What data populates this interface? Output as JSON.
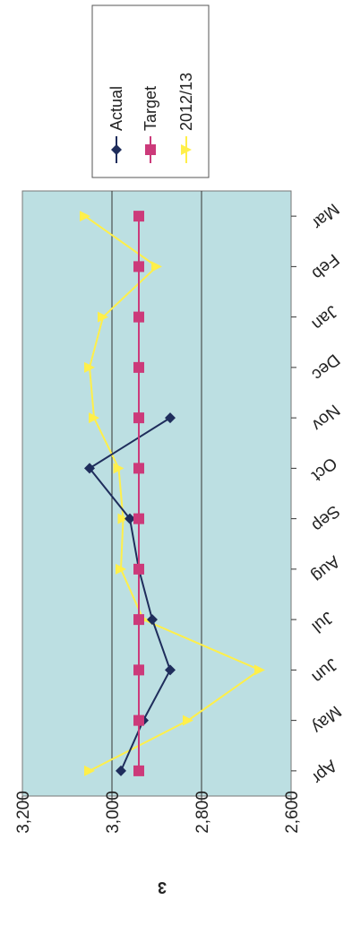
{
  "page_mark": "3",
  "chart_data": {
    "type": "line",
    "orientation": "rotated-90",
    "categories": [
      "Apr",
      "May",
      "Jun",
      "Jul",
      "Aug",
      "Sep",
      "Oct",
      "Nov",
      "Dec",
      "Jan",
      "Feb",
      "Mar"
    ],
    "y_ticks": [
      "3,200",
      "3,000",
      "2,800",
      "2,600"
    ],
    "ylim": [
      2600,
      3200
    ],
    "grid": true,
    "legend_position": "top-right",
    "series": [
      {
        "name": "Actual",
        "color": "#1f2d5c",
        "marker": "diamond",
        "values": [
          2980,
          2930,
          2870,
          2910,
          2940,
          2960,
          3050,
          2870,
          null,
          null,
          null,
          null
        ]
      },
      {
        "name": "Target",
        "color": "#cc3a7a",
        "marker": "square",
        "values": [
          2940,
          2940,
          2940,
          2940,
          2940,
          2940,
          2940,
          2940,
          2940,
          2940,
          2940,
          2940
        ]
      },
      {
        "name": "2012/13",
        "color": "#ffef4a",
        "marker": "triangle",
        "values": [
          3050,
          2830,
          2670,
          2930,
          2980,
          2975,
          2985,
          3040,
          3050,
          3020,
          2900,
          3060
        ]
      }
    ]
  }
}
